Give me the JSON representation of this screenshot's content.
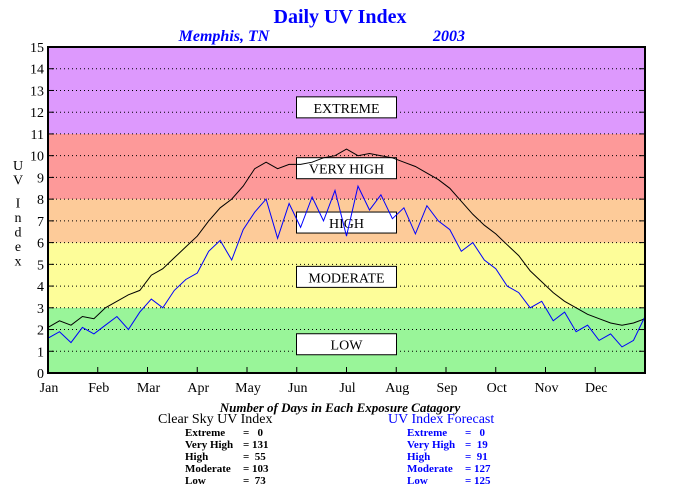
{
  "chart_data": {
    "type": "line",
    "title": "Daily UV Index",
    "location": "Memphis, TN",
    "year": "2003",
    "ylabel": "UV Index",
    "ylim": [
      0,
      15
    ],
    "yticks": [
      0,
      1,
      2,
      3,
      4,
      5,
      6,
      7,
      8,
      9,
      10,
      11,
      12,
      13,
      14,
      15
    ],
    "months": [
      "Jan",
      "Feb",
      "Mar",
      "Apr",
      "May",
      "Jun",
      "Jul",
      "Aug",
      "Sep",
      "Oct",
      "Nov",
      "Dec"
    ],
    "xlim_days": [
      1,
      365
    ],
    "grid": true,
    "bands": [
      {
        "name": "LOW",
        "from": 0,
        "to": 3,
        "color": "#99f599"
      },
      {
        "name": "MODERATE",
        "from": 3,
        "to": 6,
        "color": "#fdfd99"
      },
      {
        "name": "HIGH",
        "from": 6,
        "to": 8,
        "color": "#fdcb99"
      },
      {
        "name": "VERY HIGH",
        "from": 8,
        "to": 11,
        "color": "#fd9999"
      },
      {
        "name": "EXTREME",
        "from": 11,
        "to": 15,
        "color": "#dd99fd"
      }
    ],
    "band_labels": [
      {
        "text": "EXTREME",
        "y": 12.2
      },
      {
        "text": "VERY HIGH",
        "y": 9.4
      },
      {
        "text": "HIGH",
        "y": 6.9
      },
      {
        "text": "MODERATE",
        "y": 4.4
      },
      {
        "text": "LOW",
        "y": 1.3
      }
    ],
    "series": [
      {
        "name": "Clear Sky UV Index",
        "color": "#000000",
        "days": [
          1,
          8,
          15,
          22,
          29,
          36,
          43,
          50,
          57,
          64,
          71,
          78,
          85,
          92,
          99,
          106,
          113,
          120,
          127,
          134,
          141,
          148,
          155,
          162,
          169,
          176,
          183,
          190,
          197,
          204,
          211,
          218,
          225,
          232,
          239,
          246,
          253,
          260,
          267,
          274,
          281,
          288,
          295,
          302,
          309,
          316,
          323,
          330,
          337,
          344,
          351,
          358,
          365
        ],
        "values": [
          2.1,
          2.4,
          2.2,
          2.6,
          2.5,
          3.0,
          3.3,
          3.6,
          3.8,
          4.5,
          4.8,
          5.3,
          5.8,
          6.3,
          7.0,
          7.6,
          8.0,
          8.6,
          9.4,
          9.7,
          9.4,
          9.6,
          9.6,
          9.7,
          9.9,
          10.0,
          10.3,
          10.0,
          10.1,
          10.0,
          9.9,
          9.7,
          9.5,
          9.2,
          8.9,
          8.5,
          7.9,
          7.3,
          6.8,
          6.4,
          5.9,
          5.4,
          4.7,
          4.2,
          3.7,
          3.3,
          3.0,
          2.7,
          2.5,
          2.3,
          2.2,
          2.3,
          2.5
        ]
      },
      {
        "name": "UV Index Forecast",
        "color": "#0000ff",
        "days": [
          1,
          8,
          15,
          22,
          29,
          36,
          43,
          50,
          57,
          64,
          71,
          78,
          85,
          92,
          99,
          106,
          113,
          120,
          127,
          134,
          141,
          148,
          155,
          162,
          169,
          176,
          183,
          190,
          197,
          204,
          211,
          218,
          225,
          232,
          239,
          246,
          253,
          260,
          267,
          274,
          281,
          288,
          295,
          302,
          309,
          316,
          323,
          330,
          337,
          344,
          351,
          358,
          365
        ],
        "values": [
          1.6,
          1.9,
          1.4,
          2.1,
          1.8,
          2.2,
          2.6,
          2.0,
          2.8,
          3.4,
          3.0,
          3.8,
          4.3,
          4.6,
          5.6,
          6.1,
          5.2,
          6.6,
          7.4,
          8.0,
          6.2,
          7.8,
          6.7,
          8.1,
          7.0,
          8.4,
          6.3,
          8.6,
          7.5,
          8.2,
          7.1,
          7.6,
          6.4,
          7.7,
          7.0,
          6.6,
          5.6,
          6.0,
          5.2,
          4.8,
          4.0,
          3.7,
          3.0,
          3.3,
          2.4,
          2.8,
          1.9,
          2.2,
          1.5,
          1.8,
          1.2,
          1.5,
          2.6
        ]
      }
    ],
    "stats_title": "Number of Days in Each Exposure Catagory",
    "stats": {
      "clear_sky": {
        "title": "Clear Sky UV Index",
        "rows": [
          {
            "label": "Extreme",
            "count": "0"
          },
          {
            "label": "Very High",
            "count": "131"
          },
          {
            "label": "High",
            "count": "55"
          },
          {
            "label": "Moderate",
            "count": "103"
          },
          {
            "label": "Low",
            "count": "73"
          }
        ]
      },
      "forecast": {
        "title": "UV Index Forecast",
        "rows": [
          {
            "label": "Extreme",
            "count": "0"
          },
          {
            "label": "Very High",
            "count": "19"
          },
          {
            "label": "High",
            "count": "91"
          },
          {
            "label": "Moderate",
            "count": "127"
          },
          {
            "label": "Low",
            "count": "125"
          }
        ]
      }
    }
  }
}
